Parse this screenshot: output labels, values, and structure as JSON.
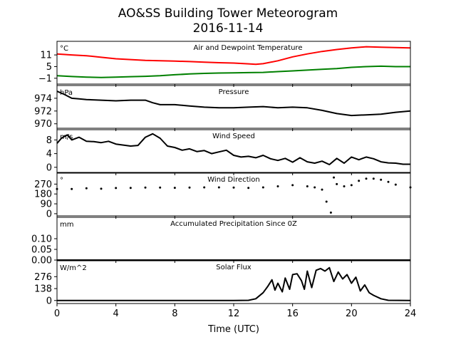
{
  "figure": {
    "title_line1": "AO&SS Building Tower Meteorogram",
    "title_line2": "2016-11-14",
    "xlabel": "Time (UTC)",
    "xticks": [
      0,
      4,
      8,
      12,
      16,
      20,
      24
    ],
    "xlim": [
      0,
      24
    ]
  },
  "chart_data": [
    {
      "type": "line",
      "title": "Air and Dewpoint Temperature",
      "unit": "°C",
      "ylim": [
        -4,
        18
      ],
      "yticks": [
        -1,
        5,
        11
      ],
      "series": [
        {
          "color": "#ff0000",
          "x": [
            0,
            1,
            2,
            3,
            4,
            5,
            6,
            7,
            8,
            9,
            10,
            11,
            12,
            13,
            13.5,
            14,
            15,
            16,
            17,
            18,
            19,
            20,
            21,
            22,
            23,
            24
          ],
          "y": [
            11.5,
            11.0,
            10.6,
            9.8,
            9.0,
            8.6,
            8.2,
            8.0,
            7.8,
            7.6,
            7.3,
            7.0,
            6.8,
            6.4,
            6.2,
            6.5,
            8.0,
            10.0,
            11.5,
            12.8,
            13.8,
            14.6,
            15.2,
            15.0,
            14.8,
            14.6
          ]
        },
        {
          "color": "#008000",
          "x": [
            0,
            1,
            2,
            3,
            4,
            5,
            6,
            7,
            8,
            9,
            10,
            11,
            12,
            13,
            14,
            15,
            16,
            17,
            18,
            19,
            20,
            21,
            22,
            23,
            24
          ],
          "y": [
            0.3,
            -0.1,
            -0.4,
            -0.6,
            -0.4,
            -0.2,
            0.0,
            0.3,
            0.8,
            1.2,
            1.5,
            1.7,
            1.8,
            1.9,
            2.0,
            2.4,
            2.8,
            3.2,
            3.6,
            4.0,
            4.6,
            5.0,
            5.2,
            5.0,
            5.0
          ]
        }
      ]
    },
    {
      "type": "line",
      "title": "Pressure",
      "unit": "hPa",
      "ylim": [
        969.3,
        976.0
      ],
      "yticks": [
        970,
        972,
        974
      ],
      "series": [
        {
          "color": "#000000",
          "x": [
            0,
            0.5,
            1,
            1.5,
            2,
            3,
            4,
            5,
            6,
            6.5,
            7,
            8,
            9,
            10,
            11,
            12,
            13,
            14,
            15,
            16,
            17,
            18,
            19,
            20,
            21,
            22,
            23,
            24
          ],
          "y": [
            975.1,
            974.6,
            974.0,
            973.9,
            973.8,
            973.7,
            973.6,
            973.7,
            973.7,
            973.3,
            973.0,
            973.0,
            972.8,
            972.6,
            972.5,
            972.5,
            972.6,
            972.7,
            972.5,
            972.6,
            972.5,
            972.1,
            971.6,
            971.3,
            971.4,
            971.5,
            971.8,
            972.0
          ]
        }
      ]
    },
    {
      "type": "line",
      "title": "Wind Speed",
      "unit": "m/s",
      "ylim": [
        -1.5,
        11
      ],
      "yticks": [
        0,
        4,
        8
      ],
      "series": [
        {
          "color": "#000000",
          "x": [
            0,
            0.3,
            0.7,
            1.0,
            1.5,
            2.0,
            2.5,
            3.0,
            3.5,
            4.0,
            4.5,
            5.0,
            5.5,
            6.0,
            6.5,
            7.0,
            7.5,
            8.0,
            8.5,
            9.0,
            9.5,
            10.0,
            10.5,
            11.0,
            11.5,
            12.0,
            12.5,
            13.0,
            13.5,
            14.0,
            14.5,
            15.0,
            15.5,
            16.0,
            16.5,
            17.0,
            17.5,
            18.0,
            18.5,
            19.0,
            19.5,
            20.0,
            20.5,
            21.0,
            21.5,
            22.0,
            22.5,
            23.0,
            23.5,
            24.0
          ],
          "y": [
            7.0,
            8.5,
            9.5,
            8.0,
            8.8,
            7.6,
            7.5,
            7.2,
            7.6,
            6.8,
            6.5,
            6.2,
            6.4,
            8.8,
            9.8,
            8.5,
            6.2,
            5.8,
            5.0,
            5.4,
            4.6,
            4.9,
            4.0,
            4.5,
            5.0,
            3.5,
            3.0,
            3.2,
            2.8,
            3.5,
            2.5,
            2.0,
            2.6,
            1.5,
            2.8,
            1.6,
            1.2,
            1.8,
            0.8,
            2.6,
            1.2,
            3.0,
            2.2,
            3.0,
            2.5,
            1.6,
            1.3,
            1.2,
            0.9,
            0.9
          ]
        }
      ]
    },
    {
      "type": "scatter",
      "title": "Wind Direction",
      "unit": "°",
      "ylim": [
        -20,
        370
      ],
      "yticks": [
        0,
        90,
        180,
        270
      ],
      "series": [
        {
          "color": "#000000",
          "x": [
            0,
            1,
            2,
            3,
            4,
            5,
            6,
            7,
            8,
            9,
            10,
            11,
            12,
            13,
            14,
            15,
            16,
            17,
            17.5,
            18,
            18.3,
            18.6,
            18.8,
            19,
            19.5,
            20,
            20.5,
            21,
            21.5,
            22,
            22.5,
            23,
            24
          ],
          "y": [
            225,
            225,
            232,
            228,
            234,
            235,
            238,
            238,
            236,
            238,
            240,
            240,
            238,
            235,
            240,
            250,
            260,
            250,
            240,
            220,
            110,
            10,
            330,
            270,
            250,
            260,
            300,
            320,
            320,
            310,
            290,
            265,
            240
          ]
        }
      ]
    },
    {
      "type": "line",
      "title": "Accumulated Precipitation Since 0Z",
      "unit": "mm",
      "ylim": [
        0,
        0.2
      ],
      "yticks": [
        "0.00",
        "0.05",
        "0.10"
      ],
      "series": [
        {
          "color": "#000000",
          "x": [
            0,
            24
          ],
          "y": [
            0,
            0
          ]
        }
      ]
    },
    {
      "type": "line",
      "title": "Solar Flux",
      "unit": "W/m^2",
      "ylim": [
        -35,
        460
      ],
      "yticks": [
        0,
        138,
        276
      ],
      "series": [
        {
          "color": "#000000",
          "x": [
            0,
            12,
            13,
            13.5,
            14,
            14.3,
            14.6,
            14.8,
            15,
            15.3,
            15.5,
            15.8,
            16,
            16.3,
            16.6,
            16.8,
            17,
            17.3,
            17.6,
            17.9,
            18.2,
            18.5,
            18.8,
            19.1,
            19.4,
            19.7,
            20,
            20.3,
            20.6,
            20.9,
            21.2,
            21.5,
            22,
            22.5,
            24
          ],
          "y": [
            0,
            0,
            2,
            20,
            90,
            160,
            240,
            120,
            200,
            100,
            260,
            130,
            300,
            310,
            230,
            130,
            340,
            150,
            350,
            370,
            340,
            380,
            220,
            330,
            250,
            300,
            200,
            270,
            110,
            180,
            90,
            60,
            20,
            2,
            0
          ]
        }
      ]
    }
  ]
}
